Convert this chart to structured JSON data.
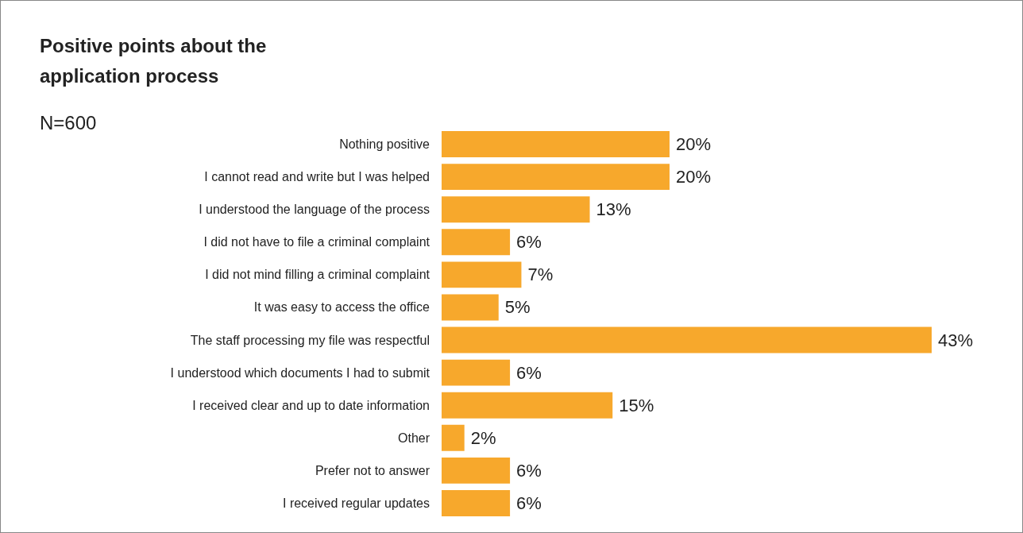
{
  "chart_data": {
    "type": "bar",
    "orientation": "horizontal",
    "title": "Positive points about the application process",
    "subtitle": "N=600",
    "categories": [
      "Nothing positive",
      "I cannot read and write but I was helped",
      "I understood the language of the process",
      "I did not have to file a criminal complaint",
      "I did not mind filling a criminal complaint",
      "It was easy to access the office",
      "The staff processing my file was respectful",
      "I understood which documents I had to submit",
      "I received clear and up to date information",
      "Other",
      "Prefer not to answer",
      "I received regular updates"
    ],
    "values": [
      20,
      20,
      13,
      6,
      7,
      5,
      43,
      6,
      15,
      2,
      6,
      6
    ],
    "value_labels": [
      "20%",
      "20%",
      "13%",
      "6%",
      "7%",
      "5%",
      "43%",
      "6%",
      "15%",
      "2%",
      "6%",
      "6%"
    ],
    "color": "#f7a82c",
    "grid": false
  }
}
